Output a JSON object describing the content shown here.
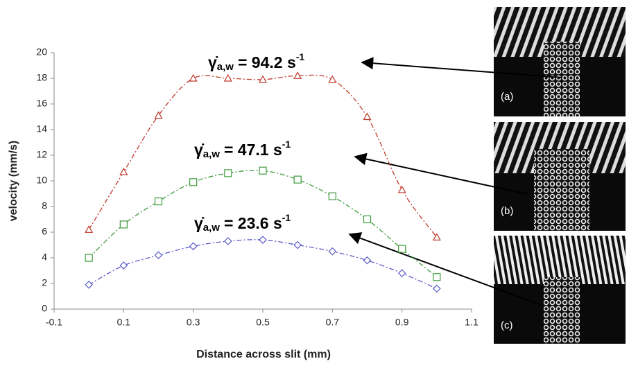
{
  "chart_data": {
    "type": "line",
    "x": [
      0,
      0.1,
      0.2,
      0.3,
      0.4,
      0.5,
      0.6,
      0.7,
      0.8,
      0.9,
      1.0
    ],
    "series": [
      {
        "name": "94.2",
        "color": "#c0392b",
        "marker": "triangle",
        "values": [
          6.2,
          10.7,
          15.1,
          18.0,
          18.0,
          17.9,
          18.2,
          17.9,
          15.0,
          9.3,
          5.6
        ]
      },
      {
        "name": "47.1",
        "color": "#3d9a3d",
        "marker": "square",
        "values": [
          4.0,
          6.6,
          8.4,
          9.9,
          10.6,
          10.8,
          10.1,
          8.8,
          7.0,
          4.7,
          2.5
        ]
      },
      {
        "name": "23.6",
        "color": "#5a5ac8",
        "marker": "diamond",
        "values": [
          1.9,
          3.4,
          4.2,
          4.9,
          5.3,
          5.4,
          5.0,
          4.5,
          3.8,
          2.8,
          1.6
        ]
      }
    ],
    "xlim": [
      -0.1,
      1.1
    ],
    "xticks": [
      -0.1,
      0.1,
      0.3,
      0.5,
      0.7,
      0.9,
      1.1
    ],
    "ylim": [
      0,
      20
    ],
    "yticks": [
      0,
      2,
      4,
      6,
      8,
      10,
      12,
      14,
      16,
      18,
      20
    ],
    "x_label": "Distance across slit (mm)",
    "y_label": "velocity (mm/s)",
    "annotations": [
      {
        "symbol": "γ̇",
        "subscript": "a,w",
        "text": "= 94.2 s",
        "superscript": "-1"
      },
      {
        "symbol": "γ̇",
        "subscript": "a,w",
        "text": "= 47.1 s",
        "superscript": "-1"
      },
      {
        "symbol": "γ̇",
        "subscript": "a,w",
        "text": "= 23.6 s",
        "superscript": "-1"
      }
    ],
    "panel_labels": [
      "(a)",
      "(b)",
      "(c)"
    ]
  }
}
